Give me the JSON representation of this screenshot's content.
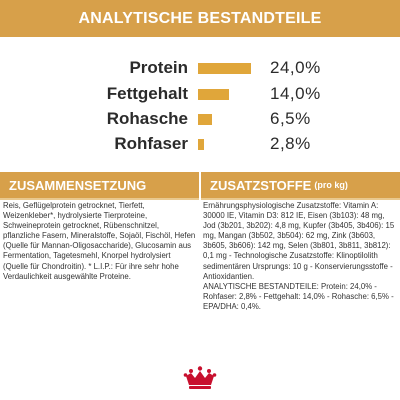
{
  "header": {
    "title": "ANALYTISCHE BESTANDTEILE"
  },
  "nutrients": [
    {
      "label": "Protein",
      "value": "24,0%",
      "percent": 24.0
    },
    {
      "label": "Fettgehalt",
      "value": "14,0%",
      "percent": 14.0
    },
    {
      "label": "Rohasche",
      "value": "6,5%",
      "percent": 6.5
    },
    {
      "label": "Rohfaser",
      "value": "2,8%",
      "percent": 2.8
    }
  ],
  "composition": {
    "title": "ZUSAMMENSETZUNG",
    "text": "Reis, Geflügelprotein getrocknet, Tierfett, Weizenkleber*, hydrolysierte Tierproteine, Schweineprotein getrocknet, Rübenschnitzel, pflanzliche Fasern, Mineralstoffe, Sojaöl, Fischöl, Hefen (Quelle für Mannan-Oligosaccharide), Glucosamin aus Fermentation, Tagetesmehl, Knorpel hydrolysiert (Quelle für Chondroitin). * L.I.P.: Für ihre sehr hohe Verdaulichkeit ausgewählte Proteine."
  },
  "additives": {
    "title": "ZUSATZSTOFFE",
    "unit": "(pro kg)",
    "text": "Ernährungsphysiologische Zusatzstoffe: Vitamin A: 30000 IE, Vitamin D3: 812 IE, Eisen (3b103): 48 mg, Jod (3b201, 3b202): 4,8 mg, Kupfer (3b405, 3b406): 15 mg, Mangan (3b502, 3b504): 62 mg, Zink (3b603, 3b605, 3b606): 142 mg, Selen (3b801, 3b811, 3b812): 0,1 mg - Technologische Zusatzstoffe: Klinoptilolith sedimentären Ursprungs: 10 g - Konservierungsstoffe - Antioxidantien.\nANALYTISCHE BESTANDTEILE: Protein: 24,0% - Rohfaser: 2,8% - Fettgehalt: 14,0% - Rohasche: 6,5% - EPA/DHA: 0,4%."
  },
  "colors": {
    "accent": "#d7a04a",
    "bar": "#e0a63a",
    "logo": "#c8102e"
  }
}
